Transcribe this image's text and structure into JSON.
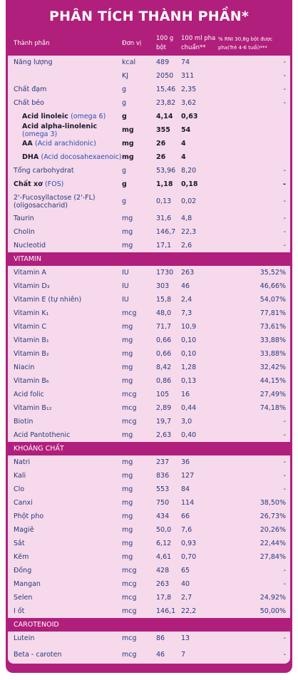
{
  "header": {
    "title": "PHÂN TÍCH THÀNH PHẦN*"
  },
  "columns": [
    "Thành phần",
    "Đơn vị",
    "100 g bột",
    "100 ml pha chuẩn**",
    "% RNI 30,8g bột được pha(Trẻ 4-6 tuổi)***"
  ],
  "sections": [
    {
      "rows": [
        {
          "name": "Năng lượng",
          "unit": "kcal",
          "per_100g": "489",
          "per_100ml": "74",
          "rni": "-"
        },
        {
          "unit": "KJ",
          "per_100g": "2050",
          "per_100ml": "311",
          "rni": "-"
        },
        {
          "name": "Chất đạm",
          "unit": "g",
          "per_100g": "15,46",
          "per_100ml": "2,35",
          "rni": "-"
        },
        {
          "name": "Chất béo",
          "unit": "g",
          "per_100g": "23,82",
          "per_100ml": "3,62",
          "rni": "-"
        },
        {
          "name": "Acid linoleic",
          "note": "(omega 6)",
          "unit": "g",
          "per_100g": "4,14",
          "per_100ml": "0,63",
          "bold": true,
          "indent": true
        },
        {
          "name": "Acid alpha-linolenic",
          "note": "(omega 3)",
          "unit": "mg",
          "per_100g": "355",
          "per_100ml": "54",
          "bold": true,
          "indent": true
        },
        {
          "name": "AA",
          "note": "(Acid arachidonic)",
          "unit": "mg",
          "per_100g": "26",
          "per_100ml": "4",
          "bold": true,
          "indent": true
        },
        {
          "name": "DHA",
          "note": "(Acid docosahexaenoic)",
          "unit": "mg",
          "per_100g": "26",
          "per_100ml": "4",
          "bold": true,
          "indent": true
        },
        {
          "name": "Tổng carbohydrat",
          "unit": "g",
          "per_100g": "53,96",
          "per_100ml": "8,20",
          "rni": "-"
        },
        {
          "name": "Chất xơ",
          "note": "(FOS)",
          "unit": "g",
          "per_100g": "1,18",
          "per_100ml": "0,18",
          "rni": "-",
          "bold": true
        },
        {
          "name": "2'-Fucosyllactose (2'-FL) (oligosaccharid)",
          "unit": "g",
          "per_100g": "0,13",
          "per_100ml": "0,02",
          "rni": "-"
        },
        {
          "name": "Taurin",
          "unit": "mg",
          "per_100g": "31,6",
          "per_100ml": "4,8",
          "rni": "-"
        },
        {
          "name": "Cholin",
          "unit": "mg",
          "per_100g": "146,7",
          "per_100ml": "22,3",
          "rni": "-"
        },
        {
          "name": "Nucleotid",
          "unit": "mg",
          "per_100g": "17,1",
          "per_100ml": "2,6",
          "rni": "-"
        }
      ]
    },
    {
      "title": "VITAMIN",
      "rows": [
        {
          "name": "Vitamin A",
          "unit": "IU",
          "per_100g": "1730",
          "per_100ml": "263",
          "rni": "35,52%"
        },
        {
          "name": "Vitamin D₃",
          "unit": "IU",
          "per_100g": "303",
          "per_100ml": "46",
          "rni": "46,66%"
        },
        {
          "name": "Vitamin E (tự nhiên)",
          "unit": "IU",
          "per_100g": "15,8",
          "per_100ml": "2,4",
          "rni": "54,07%"
        },
        {
          "name": "Vitamin K₁",
          "unit": "mcg",
          "per_100g": "48,0",
          "per_100ml": "7,3",
          "rni": "77,81%"
        },
        {
          "name": "Vitamin C",
          "unit": "mg",
          "per_100g": "71,7",
          "per_100ml": "10,9",
          "rni": "73,61%"
        },
        {
          "name": "Vitamin B₁",
          "unit": "mg",
          "per_100g": "0,66",
          "per_100ml": "0,10",
          "rni": "33,88%"
        },
        {
          "name": "Vitamin B₂",
          "unit": "mg",
          "per_100g": "0,66",
          "per_100ml": "0,10",
          "rni": "33,88%"
        },
        {
          "name": "Niacin",
          "unit": "mg",
          "per_100g": "8,42",
          "per_100ml": "1,28",
          "rni": "32,42%"
        },
        {
          "name": "Vitamin B₆",
          "unit": "mg",
          "per_100g": "0,86",
          "per_100ml": "0,13",
          "rni": "44,15%"
        },
        {
          "name": "Acid folic",
          "unit": "mcg",
          "per_100g": "105",
          "per_100ml": "16",
          "rni": "27,49%"
        },
        {
          "name": "Vitamin B₁₂",
          "unit": "mcg",
          "per_100g": "2,89",
          "per_100ml": "0,44",
          "rni": "74,18%"
        },
        {
          "name": "Biotin",
          "unit": "mcg",
          "per_100g": "19,7",
          "per_100ml": "3,0",
          "rni": "-"
        },
        {
          "name": "Acid Pantothenic",
          "unit": "mg",
          "per_100g": "2,63",
          "per_100ml": "0,40",
          "rni": "-"
        }
      ]
    },
    {
      "title": "KHOÁNG CHẤT",
      "rows": [
        {
          "name": "Natri",
          "unit": "mg",
          "per_100g": "237",
          "per_100ml": "36",
          "rni": "-"
        },
        {
          "name": "Kali",
          "unit": "mg",
          "per_100g": "836",
          "per_100ml": "127",
          "rni": "-"
        },
        {
          "name": "Clo",
          "unit": "mg",
          "per_100g": "553",
          "per_100ml": "84",
          "rni": "-"
        },
        {
          "name": "Canxi",
          "unit": "mg",
          "per_100g": "750",
          "per_100ml": "114",
          "rni": "38,50%"
        },
        {
          "name": "Phột pho",
          "unit": "mg",
          "per_100g": "434",
          "per_100ml": "66",
          "rni": "26,73%"
        },
        {
          "name": "Magiê",
          "unit": "mg",
          "per_100g": "50,0",
          "per_100ml": "7,6",
          "rni": "20,26%"
        },
        {
          "name": "Sắt",
          "unit": "mg",
          "per_100g": "6,12",
          "per_100ml": "0,93",
          "rni": "22,44%"
        },
        {
          "name": "Kẽm",
          "unit": "mg",
          "per_100g": "4,61",
          "per_100ml": "0,70",
          "rni": "27,84%"
        },
        {
          "name": "Đồng",
          "unit": "mcg",
          "per_100g": "428",
          "per_100ml": "65",
          "rni": "-"
        },
        {
          "name": "Mangan",
          "unit": "mcg",
          "per_100g": "263",
          "per_100ml": "40",
          "rni": "-"
        },
        {
          "name": "Selen",
          "unit": "mcg",
          "per_100g": "17,8",
          "per_100ml": "2,7",
          "rni": "24,92%"
        },
        {
          "name": "I ốt",
          "unit": "mcg",
          "per_100g": "146,1",
          "per_100ml": "22,2",
          "rni": "50,00%"
        }
      ]
    },
    {
      "title": "CAROTENOID",
      "rows": [
        {
          "name": "Lutein",
          "unit": "mcg",
          "per_100g": "86",
          "per_100ml": "13",
          "rni": "-"
        },
        {
          "name": "Beta - caroten",
          "unit": "mcg",
          "per_100g": "46",
          "per_100ml": "7",
          "rni": "-"
        }
      ]
    }
  ]
}
